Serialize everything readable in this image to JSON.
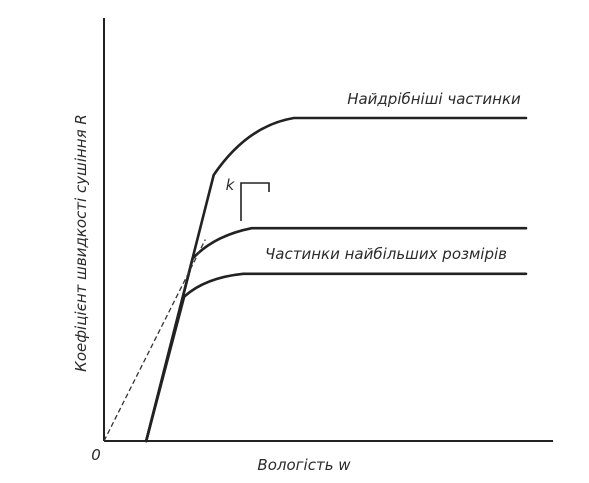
{
  "chart_data": {
    "type": "line",
    "title": "",
    "xlabel": "Вологість w",
    "ylabel": "Коефіцієнт швидкості сушіння R",
    "origin_label": "0",
    "slope_label": "k",
    "axis_ticks": "none",
    "grid": false,
    "series": [
      {
        "name": "Найдрібніші частинки",
        "style": "solid",
        "points": [
          [
            0.1,
            0.0
          ],
          [
            0.26,
            0.7
          ],
          [
            0.34,
            0.83
          ],
          [
            0.45,
            0.85
          ],
          [
            1.0,
            0.85
          ]
        ]
      },
      {
        "style": "solid",
        "points": [
          [
            0.1,
            0.0
          ],
          [
            0.21,
            0.48
          ],
          [
            0.26,
            0.54
          ],
          [
            0.35,
            0.56
          ],
          [
            1.0,
            0.56
          ]
        ]
      },
      {
        "name": "Частинки найбільших розмірів",
        "style": "solid",
        "points": [
          [
            0.1,
            0.0
          ],
          [
            0.19,
            0.38
          ],
          [
            0.24,
            0.43
          ],
          [
            0.33,
            0.44
          ],
          [
            1.0,
            0.44
          ]
        ]
      },
      {
        "style": "dashed",
        "points": [
          [
            0.0,
            0.0
          ],
          [
            0.24,
            0.53
          ]
        ]
      }
    ]
  }
}
